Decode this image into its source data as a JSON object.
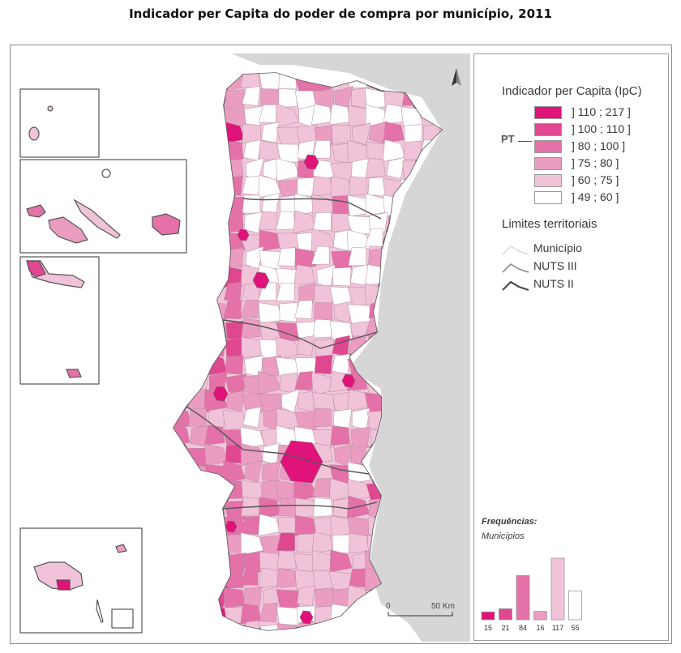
{
  "title": "Indicador per Capita do poder de compra por município, 2011",
  "legend": {
    "title": "Indicador per Capita (IpC)",
    "pt_label": "PT",
    "classes": [
      {
        "label": "] 110 ; 217 ]",
        "color": "#e0137a"
      },
      {
        "label": "] 100 ; 110 ]",
        "color": "#e04791"
      },
      {
        "label": "] 80 ; 100 ]",
        "color": "#e471a7"
      },
      {
        "label": "] 75 ; 80 ]",
        "color": "#ea9cc1"
      },
      {
        "label": "] 60 ; 75 ]",
        "color": "#f1c3d8"
      },
      {
        "label": "] 49 ; 60 ]",
        "color": "#ffffff"
      }
    ],
    "limits_title": "Limites territoriais",
    "limits": [
      {
        "label": "Município",
        "color": "#c8c8c8"
      },
      {
        "label": "NUTS III",
        "color": "#8a8a8a"
      },
      {
        "label": "NUTS II",
        "color": "#4a4a4a"
      }
    ]
  },
  "frequencies": {
    "title": "Frequências:",
    "subtitle": "Municípios",
    "counts": [
      15,
      21,
      84,
      16,
      117,
      55
    ]
  },
  "scale": {
    "start": "0",
    "end": "50 Km"
  },
  "colors": {
    "sea": "#ffffff",
    "spain": "#d3d3d3",
    "frame": "#8a8a8a"
  },
  "icons": {
    "north_arrow": "north-arrow-icon"
  }
}
